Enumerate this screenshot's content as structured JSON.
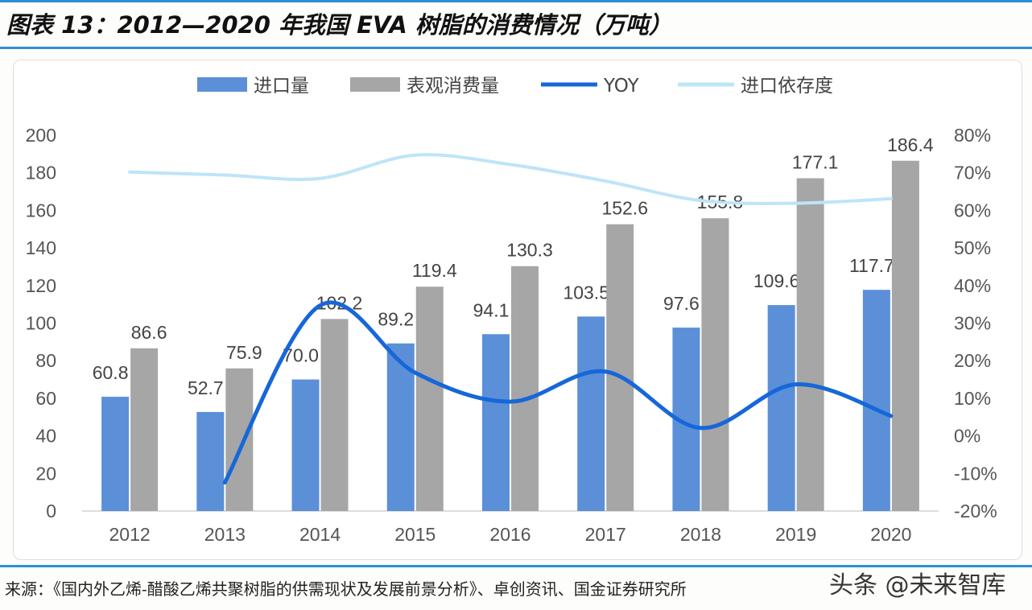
{
  "title": "图表 13：2012—2020 年我国 EVA 树脂的消费情况（万吨）",
  "source": "来源：《国内外乙烯-醋酸乙烯共聚树脂的供需现状及发展前景分析》、卓创资讯、国金证券研究所",
  "watermark": "头条 @未来智库",
  "chart_data": {
    "type": "bar",
    "categories": [
      "2012",
      "2013",
      "2014",
      "2015",
      "2016",
      "2017",
      "2018",
      "2019",
      "2020"
    ],
    "series": [
      {
        "name": "进口量",
        "kind": "bar",
        "axis": "left",
        "color": "#5b8fd8",
        "values": [
          60.8,
          52.7,
          70.0,
          89.2,
          94.1,
          103.5,
          97.6,
          109.6,
          117.7
        ]
      },
      {
        "name": "表观消费量",
        "kind": "bar",
        "axis": "left",
        "color": "#a6a6a6",
        "values": [
          86.6,
          75.9,
          102.2,
          119.4,
          130.3,
          152.6,
          155.8,
          177.1,
          186.4
        ]
      },
      {
        "name": "YOY",
        "kind": "line",
        "axis": "right",
        "color": "#1667d9",
        "values": [
          null,
          -12.4,
          34.7,
          16.8,
          9.1,
          17.1,
          2.1,
          13.7,
          5.3
        ]
      },
      {
        "name": "进口依存度",
        "kind": "line",
        "axis": "right",
        "color": "#bfe4f8",
        "values": [
          70.2,
          69.4,
          68.5,
          74.7,
          72.2,
          67.8,
          62.6,
          61.9,
          63.1
        ]
      }
    ],
    "left_axis": {
      "ylim": [
        0,
        200
      ],
      "ticks": [
        "0",
        "20",
        "40",
        "60",
        "80",
        "100",
        "120",
        "140",
        "160",
        "180",
        "200"
      ]
    },
    "right_axis": {
      "ylim": [
        -20,
        80
      ],
      "unit": "%",
      "ticks": [
        "-20%",
        "-10%",
        "0%",
        "10%",
        "20%",
        "30%",
        "40%",
        "50%",
        "60%",
        "70%",
        "80%"
      ]
    },
    "legend": "top",
    "grid": false
  }
}
